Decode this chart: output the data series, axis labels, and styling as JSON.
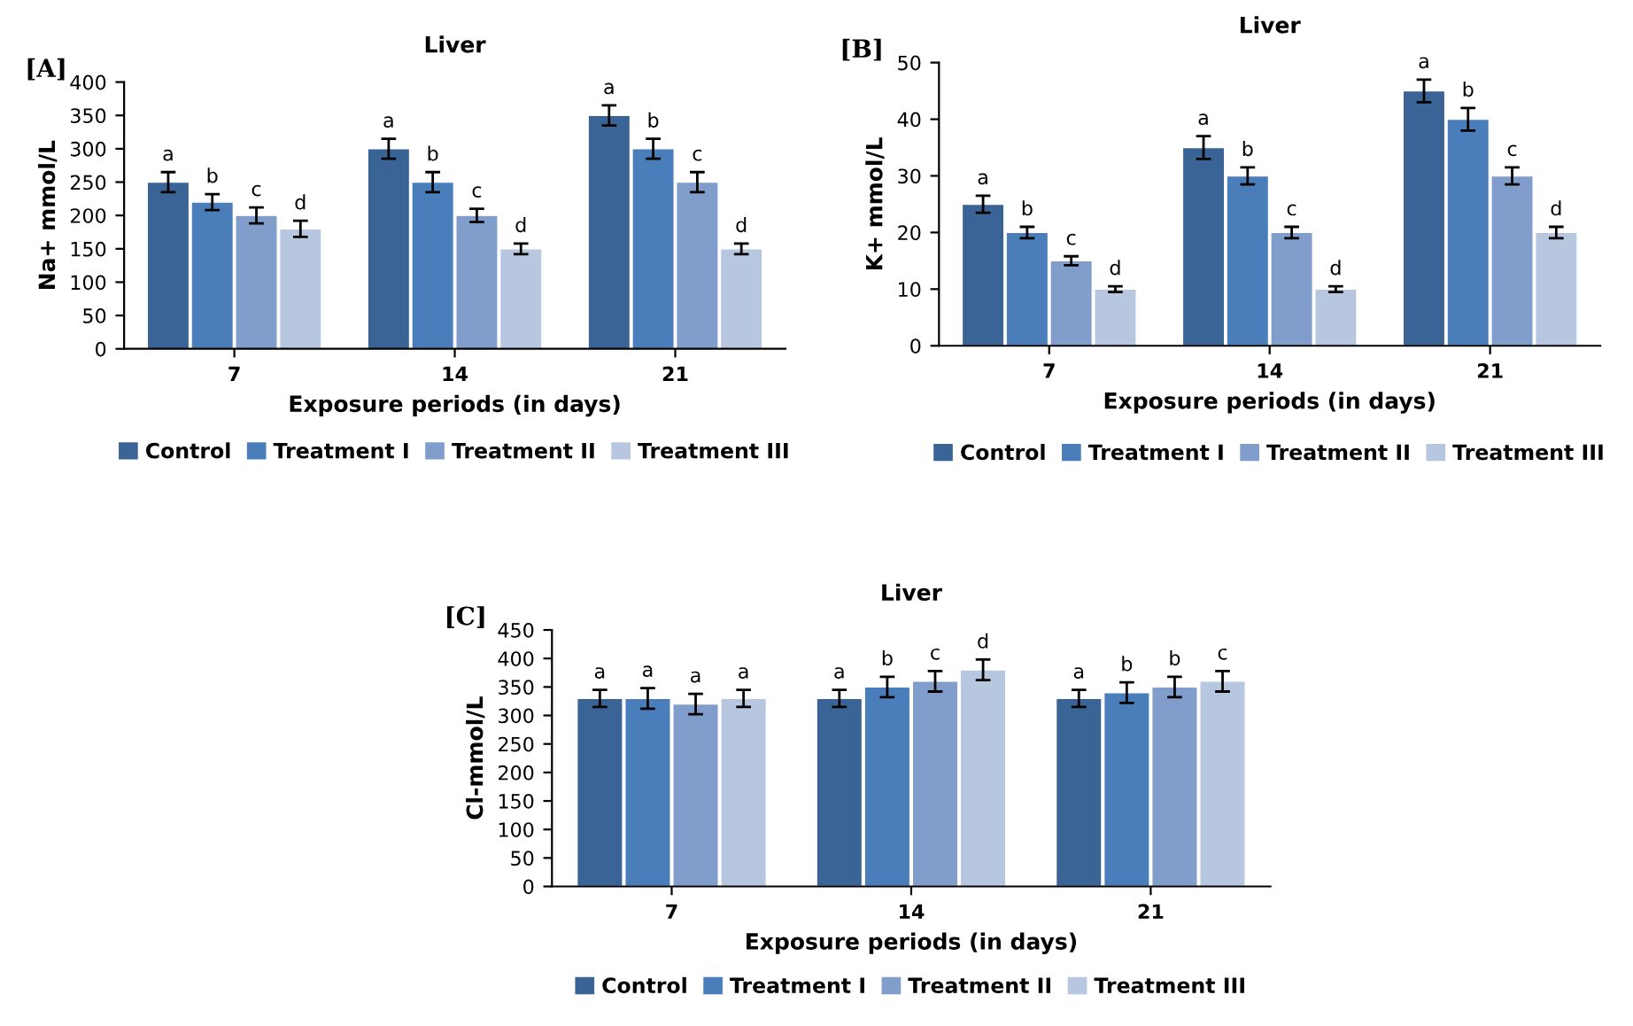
{
  "chart_data": [
    {
      "type": "bar",
      "title": "Liver",
      "xlabel": "Exposure periods (in days)",
      "ylabel": "Na+ mmol/L",
      "annotations": [
        "[A]"
      ],
      "categories": [
        "7",
        "14",
        "21"
      ],
      "ylim": [
        0,
        400
      ],
      "yticks": [
        0,
        50,
        100,
        150,
        200,
        250,
        300,
        350,
        400
      ],
      "grid": false,
      "legend": "bottom",
      "series": [
        {
          "name": "Control",
          "color": "#3b6496",
          "values": [
            250,
            300,
            350
          ],
          "errors": [
            15,
            15,
            15
          ],
          "value_labels": [
            "a",
            "a",
            "a"
          ]
        },
        {
          "name": "Treatment I",
          "color": "#4a7ebb",
          "values": [
            220,
            250,
            300
          ],
          "errors": [
            12,
            15,
            15
          ],
          "value_labels": [
            "b",
            "b",
            "b"
          ]
        },
        {
          "name": "Treatment II",
          "color": "#809dcb",
          "values": [
            200,
            200,
            250
          ],
          "errors": [
            12,
            10,
            15
          ],
          "value_labels": [
            "c",
            "c",
            "c"
          ]
        },
        {
          "name": "Treatment III",
          "color": "#b8c7e0",
          "values": [
            180,
            150,
            150
          ],
          "errors": [
            12,
            8,
            8
          ],
          "value_labels": [
            "d",
            "d",
            "d"
          ]
        }
      ]
    },
    {
      "type": "bar",
      "title": "Liver",
      "xlabel": "Exposure periods (in days)",
      "ylabel": "K+ mmol/L",
      "annotations": [
        "[B]"
      ],
      "categories": [
        "7",
        "14",
        "21"
      ],
      "ylim": [
        0,
        50
      ],
      "yticks": [
        0,
        10,
        20,
        30,
        40,
        50
      ],
      "grid": false,
      "legend": "bottom",
      "series": [
        {
          "name": "Control",
          "color": "#3b6496",
          "values": [
            25,
            35,
            45
          ],
          "errors": [
            1.5,
            2,
            2
          ],
          "value_labels": [
            "a",
            "a",
            "a"
          ]
        },
        {
          "name": "Treatment I",
          "color": "#4a7ebb",
          "values": [
            20,
            30,
            40
          ],
          "errors": [
            1,
            1.5,
            2
          ],
          "value_labels": [
            "b",
            "b",
            "b"
          ]
        },
        {
          "name": "Treatment II",
          "color": "#809dcb",
          "values": [
            15,
            20,
            30
          ],
          "errors": [
            0.8,
            1,
            1.5
          ],
          "value_labels": [
            "c",
            "c",
            "c"
          ]
        },
        {
          "name": "Treatment III",
          "color": "#b8c7e0",
          "values": [
            10,
            10,
            20
          ],
          "errors": [
            0.5,
            0.5,
            1
          ],
          "value_labels": [
            "d",
            "d",
            "d"
          ]
        }
      ]
    },
    {
      "type": "bar",
      "title": "Liver",
      "xlabel": "Exposure periods (in days)",
      "ylabel": "Cl-mmol/L",
      "annotations": [
        "[C]"
      ],
      "categories": [
        "7",
        "14",
        "21"
      ],
      "ylim": [
        0,
        450
      ],
      "yticks": [
        0,
        50,
        100,
        150,
        200,
        250,
        300,
        350,
        400,
        450
      ],
      "grid": false,
      "legend": "bottom",
      "series": [
        {
          "name": "Control",
          "color": "#3b6496",
          "values": [
            330,
            330,
            330
          ],
          "errors": [
            15,
            15,
            15
          ],
          "value_labels": [
            "a",
            "a",
            "a"
          ]
        },
        {
          "name": "Treatment I",
          "color": "#4a7ebb",
          "values": [
            330,
            350,
            340
          ],
          "errors": [
            18,
            18,
            18
          ],
          "value_labels": [
            "a",
            "b",
            "b"
          ]
        },
        {
          "name": "Treatment II",
          "color": "#809dcb",
          "values": [
            320,
            360,
            350
          ],
          "errors": [
            18,
            18,
            18
          ],
          "value_labels": [
            "a",
            "c",
            "b"
          ]
        },
        {
          "name": "Treatment III",
          "color": "#b8c7e0",
          "values": [
            330,
            380,
            360
          ],
          "errors": [
            15,
            18,
            18
          ],
          "value_labels": [
            "a",
            "d",
            "c"
          ]
        }
      ]
    }
  ]
}
